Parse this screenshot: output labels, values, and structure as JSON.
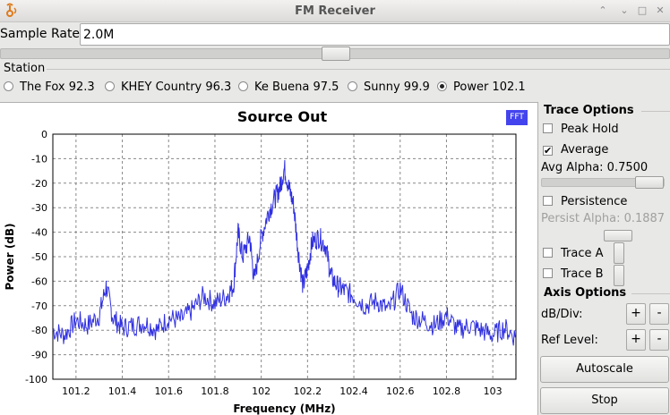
{
  "window": {
    "title": "FM Receiver",
    "controls": [
      "⌃",
      "⌃",
      "□",
      "✕"
    ]
  },
  "sample_rate": {
    "label": "Sample Rate:",
    "value": "2.0M"
  },
  "station": {
    "title": "Station",
    "options": [
      {
        "label": "The Fox 92.3",
        "checked": false
      },
      {
        "label": "KHEY Country 96.3",
        "checked": false
      },
      {
        "label": "Ke Buena 97.5",
        "checked": false
      },
      {
        "label": "Sunny 99.9",
        "checked": false
      },
      {
        "label": "Power 102.1",
        "checked": true
      }
    ]
  },
  "plot": {
    "title": "Source Out",
    "badge": "FFT",
    "trace_color": "#3030e0"
  },
  "chart_data": {
    "type": "line",
    "title": "Source Out",
    "xlabel": "Frequency (MHz)",
    "ylabel": "Power (dB)",
    "xlim": [
      101.1,
      103.1
    ],
    "ylim": [
      -100,
      0
    ],
    "x_ticks": [
      "101.2",
      "101.4",
      "101.6",
      "101.8",
      "102",
      "102.2",
      "102.4",
      "102.6",
      "102.8",
      "103"
    ],
    "y_ticks": [
      "0",
      "-10",
      "-20",
      "-30",
      "-40",
      "-50",
      "-60",
      "-70",
      "-80",
      "-90",
      "-100"
    ],
    "grid": true,
    "series": [
      {
        "x": [
          101.1,
          101.15,
          101.2,
          101.25,
          101.3,
          101.33,
          101.36,
          101.4,
          101.45,
          101.5,
          101.55,
          101.6,
          101.65,
          101.7,
          101.75,
          101.8,
          101.85,
          101.88,
          101.9,
          101.92,
          101.95,
          101.97,
          102.0,
          102.03,
          102.06,
          102.08,
          102.1,
          102.12,
          102.14,
          102.16,
          102.18,
          102.2,
          102.22,
          102.25,
          102.28,
          102.3,
          102.33,
          102.36,
          102.4,
          102.45,
          102.5,
          102.55,
          102.6,
          102.65,
          102.7,
          102.75,
          102.8,
          102.85,
          102.9,
          102.95,
          103.0,
          103.05,
          103.1
        ],
        "values": [
          -80,
          -82,
          -76,
          -78,
          -74,
          -62,
          -75,
          -79,
          -78,
          -77,
          -80,
          -75,
          -76,
          -72,
          -66,
          -69,
          -66,
          -62,
          -40,
          -50,
          -42,
          -60,
          -42,
          -32,
          -26,
          -22,
          -14,
          -22,
          -29,
          -48,
          -62,
          -55,
          -44,
          -42,
          -46,
          -58,
          -62,
          -64,
          -66,
          -70,
          -68,
          -72,
          -63,
          -74,
          -76,
          -78,
          -74,
          -80,
          -78,
          -80,
          -82,
          -79,
          -83
        ]
      }
    ]
  },
  "trace_options": {
    "title": "Trace Options",
    "peak_hold": {
      "label": "Peak Hold",
      "checked": false
    },
    "average": {
      "label": "Average",
      "checked": true
    },
    "avg_alpha_label": "Avg Alpha: 0.7500",
    "persistence": {
      "label": "Persistence",
      "checked": false
    },
    "persist_alpha_label": "Persist Alpha: 0.1887",
    "trace_a": {
      "label": "Trace A",
      "checked": false
    },
    "trace_b": {
      "label": "Trace B",
      "checked": false
    }
  },
  "axis_options": {
    "title": "Axis Options",
    "db_div_label": "dB/Div:",
    "ref_level_label": "Ref Level:",
    "plus": "+",
    "minus": "-"
  },
  "buttons": {
    "autoscale": "Autoscale",
    "stop": "Stop"
  }
}
